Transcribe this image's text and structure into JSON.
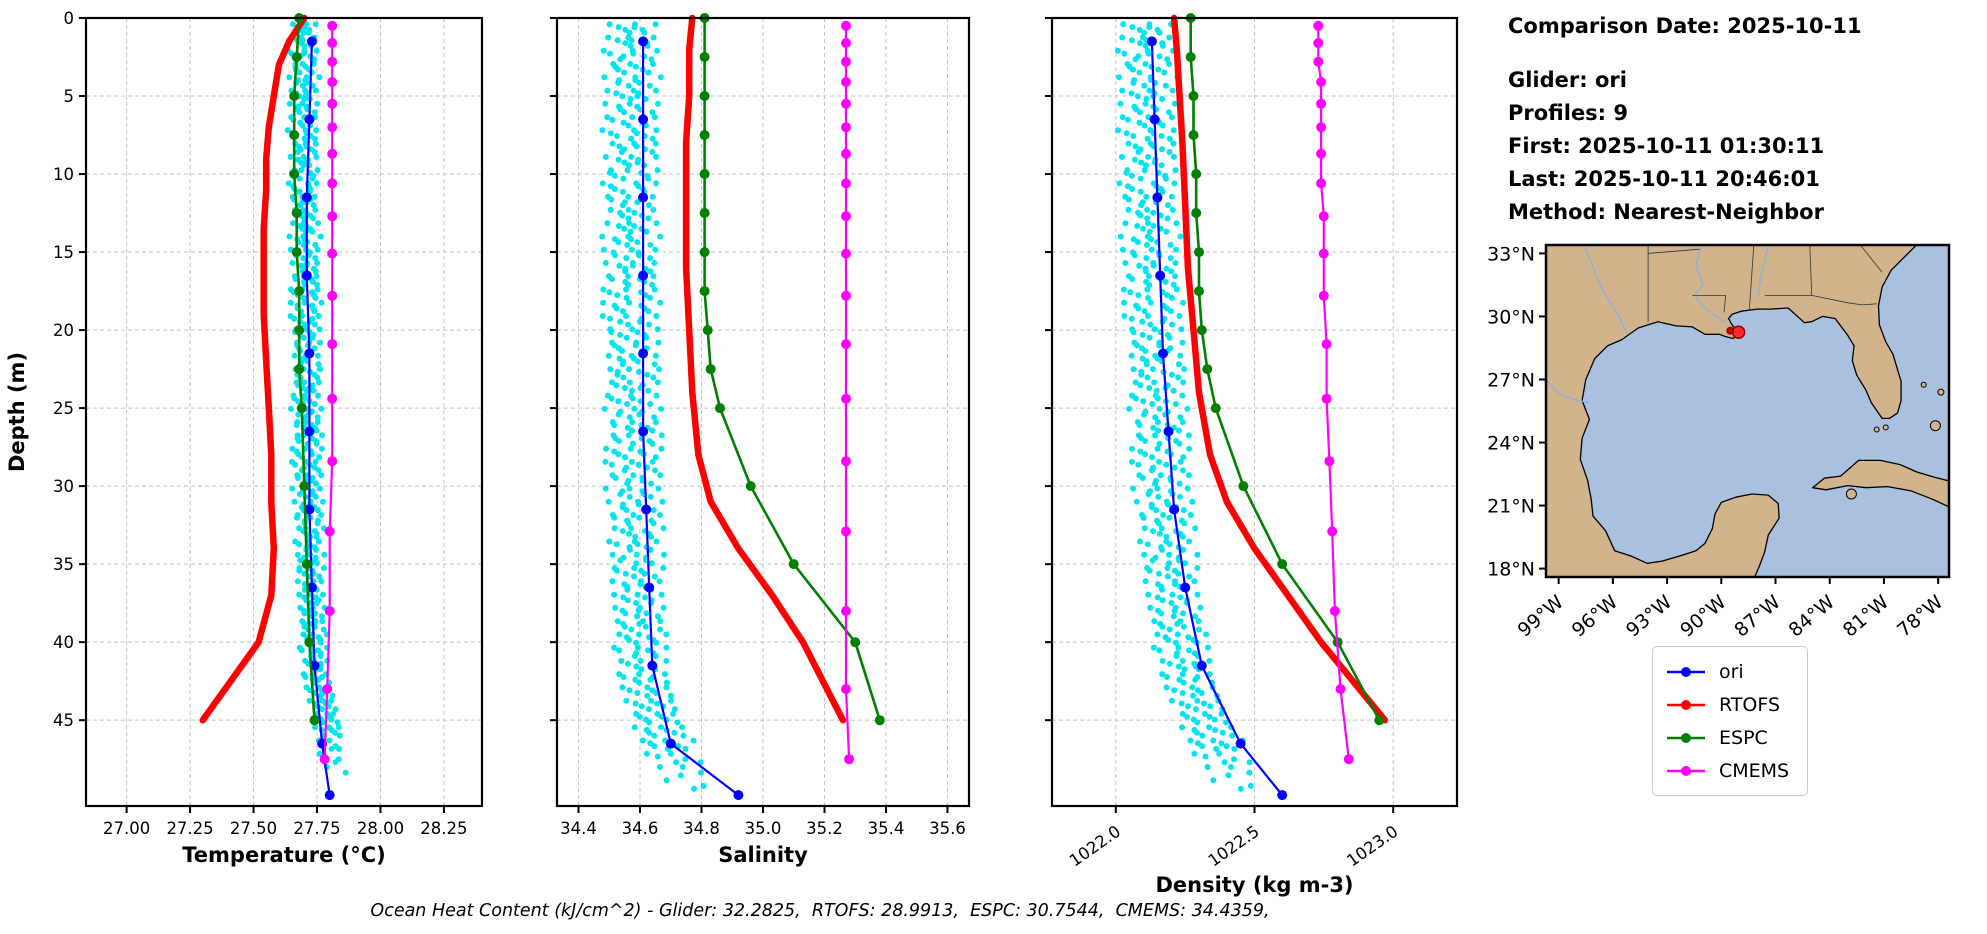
{
  "info_panel": {
    "lines": [
      "Comparison Date: 2025-10-11",
      "",
      "Glider: ori",
      "Profiles: 9",
      "First: 2025-10-11 01:30:11",
      "Last: 2025-10-11 20:46:01",
      "Method: Nearest-Neighbor"
    ]
  },
  "caption": "Ocean Heat Content (kJ/cm^2) - Glider: 32.2825,  RTOFS: 28.9913,  ESPC: 30.7544,  CMEMS: 34.4359,",
  "legend": {
    "entries": [
      {
        "label": "ori",
        "color": "#0000ff"
      },
      {
        "label": "RTOFS",
        "color": "#ff0000"
      },
      {
        "label": "ESPC",
        "color": "#008000"
      },
      {
        "label": "CMEMS",
        "color": "#ff00ff"
      }
    ]
  },
  "map": {
    "lat_ticks": [
      "33°N",
      "30°N",
      "27°N",
      "24°N",
      "21°N",
      "18°N"
    ],
    "lat_tick_values": [
      33,
      30,
      27,
      24,
      21,
      18
    ],
    "lon_ticks": [
      "99°W",
      "96°W",
      "93°W",
      "90°W",
      "87°W",
      "84°W",
      "81°W",
      "78°W"
    ],
    "lon_tick_values": [
      -99,
      -96,
      -93,
      -90,
      -87,
      -84,
      -81,
      -78
    ],
    "lat_range": [
      17.6,
      33.4
    ],
    "lon_range": [
      -99.7,
      -77.4
    ],
    "land_color": "#d2b48c",
    "water_color": "#a9c0de",
    "markers": [
      {
        "lon": -89.04,
        "lat": 29.25,
        "r": 6,
        "color": "#ff2a2a",
        "edge": "#8b0000"
      },
      {
        "lon": -89.5,
        "lat": 29.32,
        "r": 3.2,
        "color": "#cc0000",
        "edge": "#8b0000"
      }
    ]
  },
  "chart_data": [
    {
      "id": "temperature",
      "type": "line",
      "xlabel": "Temperature (°C)",
      "ylabel": "Depth (m)",
      "xlim": [
        26.84,
        28.4
      ],
      "ylim": [
        0,
        50.5
      ],
      "xticks": [
        27.0,
        27.25,
        27.5,
        27.75,
        28.0,
        28.25
      ],
      "xtick_labels": [
        "27.00",
        "27.25",
        "27.50",
        "27.75",
        "28.00",
        "28.25"
      ],
      "yticks": [
        0,
        5,
        10,
        15,
        20,
        25,
        30,
        35,
        40,
        45
      ],
      "ytick_labels": [
        "0",
        "5",
        "10",
        "15",
        "20",
        "25",
        "30",
        "35",
        "40",
        "45"
      ],
      "show_ytick_labels": true,
      "rotate_xticklabels": false,
      "scatter": {
        "name": "glider-raw-profiles",
        "color": "#00e5ee",
        "dot_radius": 3,
        "profile_offsets": [
          -0.05,
          -0.037,
          -0.026,
          -0.014,
          -0.003,
          0.008,
          0.018,
          0.03,
          0.044
        ],
        "jitter": 0.016,
        "depth_step": 0.85,
        "depth_end": 48.5,
        "center_depths": [
          0,
          8,
          16,
          24,
          32,
          38,
          42,
          45,
          48
        ],
        "center_values": [
          27.7,
          27.7,
          27.71,
          27.71,
          27.72,
          27.73,
          27.75,
          27.79,
          27.83
        ]
      },
      "series": [
        {
          "name": "ori",
          "color": "#0000ff",
          "line_width": 2.2,
          "marker_radius": 5,
          "depths": [
            1.5,
            6.5,
            11.5,
            16.5,
            21.5,
            26.5,
            31.5,
            36.5,
            41.5,
            46.5,
            49.8
          ],
          "values": [
            27.73,
            27.72,
            27.71,
            27.71,
            27.72,
            27.72,
            27.72,
            27.73,
            27.74,
            27.77,
            27.8
          ]
        },
        {
          "name": "RTOFS",
          "color": "#ff0000",
          "line_width": 6.5,
          "marker_radius": 0,
          "depths": [
            0,
            1.5,
            3,
            5,
            7,
            9,
            11,
            13.5,
            16,
            19,
            22,
            25,
            28,
            31,
            34,
            37,
            40,
            45
          ],
          "values": [
            27.7,
            27.64,
            27.6,
            27.58,
            27.56,
            27.55,
            27.55,
            27.54,
            27.54,
            27.54,
            27.55,
            27.56,
            27.57,
            27.57,
            27.58,
            27.57,
            27.52,
            27.3
          ]
        },
        {
          "name": "ESPC",
          "color": "#008000",
          "line_width": 2.6,
          "marker_radius": 5,
          "depths": [
            0,
            2.5,
            5,
            7.5,
            10,
            12.5,
            15,
            17.5,
            20,
            22.5,
            25,
            30,
            35,
            40,
            45
          ],
          "values": [
            27.68,
            27.67,
            27.66,
            27.66,
            27.66,
            27.67,
            27.67,
            27.68,
            27.68,
            27.68,
            27.69,
            27.7,
            27.71,
            27.72,
            27.74
          ]
        },
        {
          "name": "CMEMS",
          "color": "#ff00ff",
          "line_width": 2.2,
          "marker_radius": 5,
          "depths": [
            0.5,
            1.6,
            2.8,
            4.1,
            5.5,
            7.0,
            8.7,
            10.6,
            12.7,
            15.1,
            17.8,
            20.9,
            24.4,
            28.4,
            32.9,
            38.0,
            43.0,
            47.5
          ],
          "values": [
            27.81,
            27.81,
            27.81,
            27.81,
            27.81,
            27.81,
            27.81,
            27.81,
            27.81,
            27.81,
            27.81,
            27.81,
            27.81,
            27.81,
            27.8,
            27.8,
            27.79,
            27.78
          ]
        }
      ]
    },
    {
      "id": "salinity",
      "type": "line",
      "xlabel": "Salinity",
      "ylabel": "",
      "xlim": [
        34.33,
        35.67
      ],
      "ylim": [
        0,
        50.5
      ],
      "xticks": [
        34.4,
        34.6,
        34.8,
        35.0,
        35.2,
        35.4,
        35.6
      ],
      "xtick_labels": [
        "34.4",
        "34.6",
        "34.8",
        "35.0",
        "35.2",
        "35.4",
        "35.6"
      ],
      "yticks": [
        0,
        5,
        10,
        15,
        20,
        25,
        30,
        35,
        40,
        45
      ],
      "ytick_labels": [
        "0",
        "5",
        "10",
        "15",
        "20",
        "25",
        "30",
        "35",
        "40",
        "45"
      ],
      "show_ytick_labels": false,
      "rotate_xticklabels": false,
      "scatter": {
        "name": "glider-raw-profiles",
        "color": "#00e5ee",
        "dot_radius": 3,
        "profile_offsets": [
          -0.085,
          -0.063,
          -0.044,
          -0.026,
          -0.008,
          0.009,
          0.027,
          0.048,
          0.07
        ],
        "jitter": 0.018,
        "depth_step": 0.85,
        "depth_end": 49.5,
        "center_depths": [
          0,
          10,
          20,
          30,
          38,
          42,
          45,
          48,
          50
        ],
        "center_values": [
          34.58,
          34.58,
          34.58,
          34.59,
          34.6,
          34.62,
          34.66,
          34.74,
          34.82
        ]
      },
      "series": [
        {
          "name": "ori",
          "color": "#0000ff",
          "line_width": 2.2,
          "marker_radius": 5,
          "depths": [
            1.5,
            6.5,
            11.5,
            16.5,
            21.5,
            26.5,
            31.5,
            36.5,
            41.5,
            46.5,
            49.8
          ],
          "values": [
            34.61,
            34.61,
            34.61,
            34.61,
            34.61,
            34.61,
            34.62,
            34.63,
            34.64,
            34.7,
            34.92
          ]
        },
        {
          "name": "RTOFS",
          "color": "#ff0000",
          "line_width": 6.5,
          "marker_radius": 0,
          "depths": [
            0,
            2,
            5,
            8,
            12,
            16,
            20,
            24,
            28,
            31,
            34,
            37,
            40,
            45
          ],
          "values": [
            34.77,
            34.76,
            34.76,
            34.75,
            34.75,
            34.75,
            34.76,
            34.77,
            34.79,
            34.83,
            34.92,
            35.03,
            35.13,
            35.26
          ]
        },
        {
          "name": "ESPC",
          "color": "#008000",
          "line_width": 2.6,
          "marker_radius": 5,
          "depths": [
            0,
            2.5,
            5,
            7.5,
            10,
            12.5,
            15,
            17.5,
            20,
            22.5,
            25,
            30,
            35,
            40,
            45
          ],
          "values": [
            34.81,
            34.81,
            34.81,
            34.81,
            34.81,
            34.81,
            34.81,
            34.81,
            34.82,
            34.83,
            34.86,
            34.96,
            35.1,
            35.3,
            35.38
          ]
        },
        {
          "name": "CMEMS",
          "color": "#ff00ff",
          "line_width": 2.2,
          "marker_radius": 5,
          "depths": [
            0.5,
            1.6,
            2.8,
            4.1,
            5.5,
            7.0,
            8.7,
            10.6,
            12.7,
            15.1,
            17.8,
            20.9,
            24.4,
            28.4,
            32.9,
            38.0,
            43.0,
            47.5
          ],
          "values": [
            35.27,
            35.27,
            35.27,
            35.27,
            35.27,
            35.27,
            35.27,
            35.27,
            35.27,
            35.27,
            35.27,
            35.27,
            35.27,
            35.27,
            35.27,
            35.27,
            35.27,
            35.28
          ]
        }
      ]
    },
    {
      "id": "density",
      "type": "line",
      "xlabel": "Density (kg m-3)",
      "ylabel": "",
      "xlim": [
        1021.77,
        1023.23
      ],
      "ylim": [
        0,
        50.5
      ],
      "xticks": [
        1022.0,
        1022.5,
        1023.0
      ],
      "xtick_labels": [
        "1022.0",
        "1022.5",
        "1023.0"
      ],
      "yticks": [
        0,
        5,
        10,
        15,
        20,
        25,
        30,
        35,
        40,
        45
      ],
      "ytick_labels": [
        "0",
        "5",
        "10",
        "15",
        "20",
        "25",
        "30",
        "35",
        "40",
        "45"
      ],
      "show_ytick_labels": false,
      "rotate_xticklabels": true,
      "scatter": {
        "name": "glider-raw-profiles",
        "color": "#00e5ee",
        "dot_radius": 3,
        "profile_offsets": [
          -0.1,
          -0.075,
          -0.053,
          -0.032,
          -0.012,
          0.008,
          0.028,
          0.052,
          0.078
        ],
        "jitter": 0.02,
        "depth_step": 0.85,
        "depth_end": 49.5,
        "center_depths": [
          0,
          10,
          20,
          30,
          38,
          42,
          45,
          48,
          50
        ],
        "center_values": [
          1022.12,
          1022.13,
          1022.15,
          1022.18,
          1022.22,
          1022.27,
          1022.33,
          1022.42,
          1022.5
        ]
      },
      "series": [
        {
          "name": "ori",
          "color": "#0000ff",
          "line_width": 2.2,
          "marker_radius": 5,
          "depths": [
            1.5,
            6.5,
            11.5,
            16.5,
            21.5,
            26.5,
            31.5,
            36.5,
            41.5,
            46.5,
            49.8
          ],
          "values": [
            1022.13,
            1022.14,
            1022.15,
            1022.16,
            1022.17,
            1022.19,
            1022.21,
            1022.25,
            1022.31,
            1022.45,
            1022.6
          ]
        },
        {
          "name": "RTOFS",
          "color": "#ff0000",
          "line_width": 6.5,
          "marker_radius": 0,
          "depths": [
            0,
            2,
            5,
            8,
            12,
            16,
            20,
            24,
            28,
            31,
            34,
            37,
            40,
            45
          ],
          "values": [
            1022.21,
            1022.22,
            1022.23,
            1022.24,
            1022.25,
            1022.26,
            1022.28,
            1022.3,
            1022.34,
            1022.4,
            1022.5,
            1022.62,
            1022.74,
            1022.97
          ]
        },
        {
          "name": "ESPC",
          "color": "#008000",
          "line_width": 2.6,
          "marker_radius": 5,
          "depths": [
            0,
            2.5,
            5,
            7.5,
            10,
            12.5,
            15,
            17.5,
            20,
            22.5,
            25,
            30,
            35,
            40,
            45
          ],
          "values": [
            1022.27,
            1022.27,
            1022.28,
            1022.28,
            1022.29,
            1022.29,
            1022.3,
            1022.3,
            1022.31,
            1022.33,
            1022.36,
            1022.46,
            1022.6,
            1022.8,
            1022.95
          ]
        },
        {
          "name": "CMEMS",
          "color": "#ff00ff",
          "line_width": 2.2,
          "marker_radius": 5,
          "depths": [
            0.5,
            1.6,
            2.8,
            4.1,
            5.5,
            7.0,
            8.7,
            10.6,
            12.7,
            15.1,
            17.8,
            20.9,
            24.4,
            28.4,
            32.9,
            38.0,
            43.0,
            47.5
          ],
          "values": [
            1022.73,
            1022.73,
            1022.73,
            1022.74,
            1022.74,
            1022.74,
            1022.74,
            1022.74,
            1022.75,
            1022.75,
            1022.75,
            1022.76,
            1022.76,
            1022.77,
            1022.78,
            1022.79,
            1022.81,
            1022.84
          ]
        }
      ]
    }
  ]
}
